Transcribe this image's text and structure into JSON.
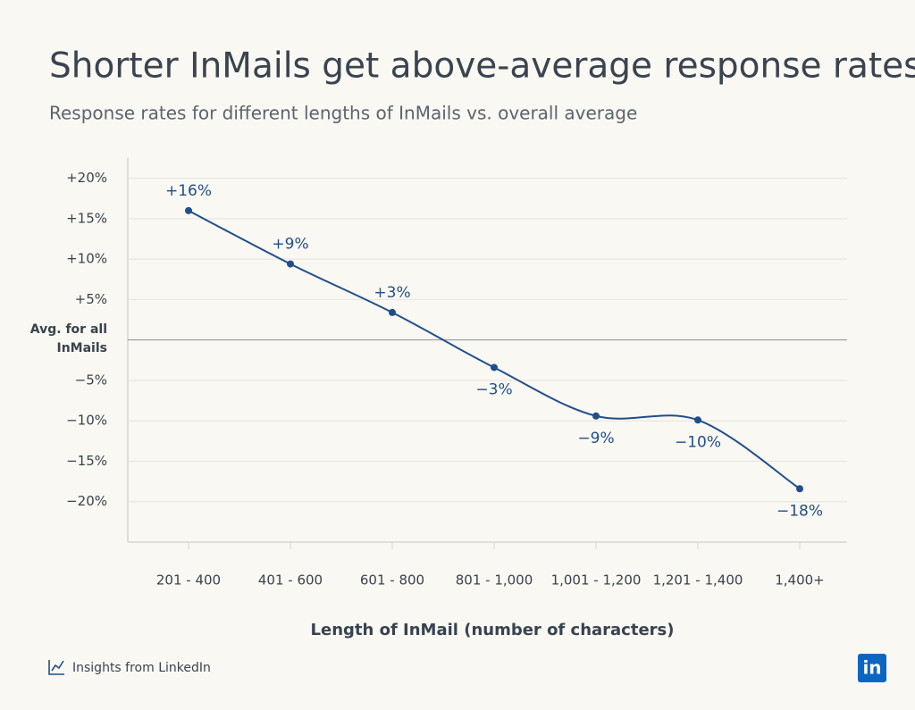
{
  "chart_data": {
    "type": "line",
    "title": "Shorter InMails get above-average response rates",
    "subtitle": "Response rates for different lengths of InMails vs. overall average",
    "x_label": "Length of InMail (number of characters)",
    "categories": [
      "201 - 400",
      "401 - 600",
      "601 - 800",
      "801 - 1,000",
      "1,001 - 1,200",
      "1,201 - 1,400",
      "1,400+"
    ],
    "series": [
      {
        "color": "#1f4e8c",
        "values": [
          16,
          9.4,
          3.4,
          -3.4,
          -9.4,
          -9.9,
          -18.4
        ],
        "value_labels": [
          "+16%",
          "+9%",
          "+3%",
          "−3%",
          "−9%",
          "−10%",
          "−18%"
        ]
      }
    ],
    "ylim": [
      -25,
      22.5
    ],
    "yticks": [
      {
        "value": -20,
        "label": "−20%"
      },
      {
        "value": -15,
        "label": "−15%"
      },
      {
        "value": -10,
        "label": "−10%"
      },
      {
        "value": -5,
        "label": "−5%"
      },
      {
        "value": 0,
        "label": "Avg. for all InMails"
      },
      {
        "value": 5,
        "label": "+5%"
      },
      {
        "value": 10,
        "label": "+10%"
      },
      {
        "value": 15,
        "label": "+15%"
      },
      {
        "value": 20,
        "label": "+20%"
      }
    ],
    "grid": true
  },
  "footer": {
    "source": "Insights from LinkedIn",
    "logo": "in"
  }
}
